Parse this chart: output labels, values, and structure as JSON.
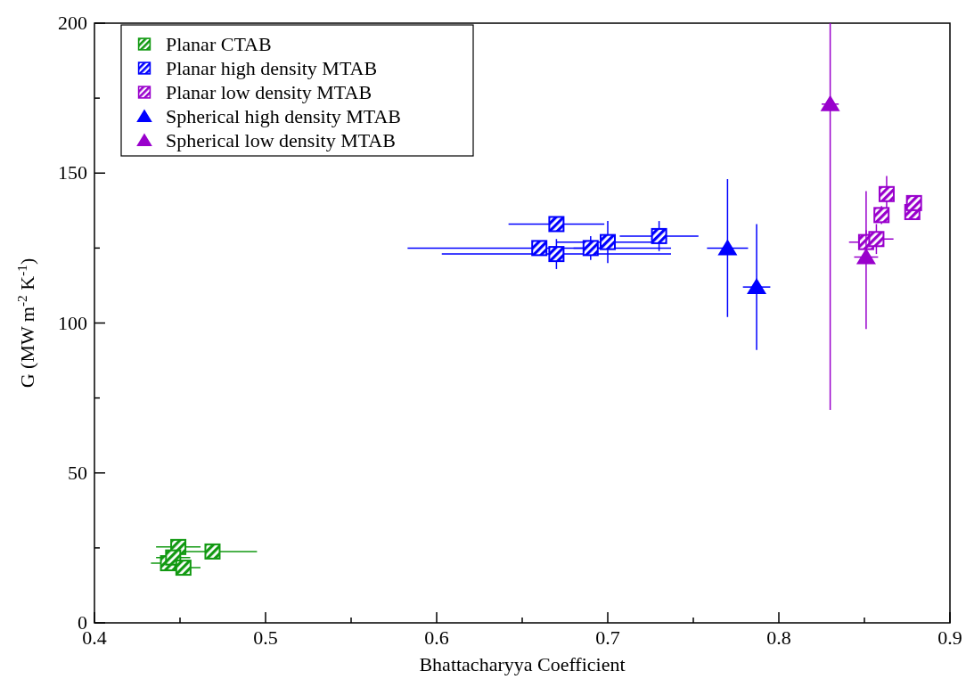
{
  "chart_data": {
    "type": "scatter",
    "xlabel": "Bhattacharyya Coefficient",
    "ylabel": "G (MW m$^{-2}$ K$^{-1}$)",
    "xlim": [
      0.4,
      0.9
    ],
    "ylim": [
      0,
      200
    ],
    "xticks": [
      0.4,
      {
        "value": 0.45,
        "label": null
      },
      0.5,
      {
        "value": 0.55,
        "label": null
      },
      0.6,
      {
        "value": 0.65,
        "label": null
      },
      0.7,
      {
        "value": 0.75,
        "label": null
      },
      0.8,
      {
        "value": 0.85,
        "label": null
      },
      0.9
    ],
    "yticks": [
      0,
      {
        "value": 25,
        "label": null
      },
      50,
      {
        "value": 75,
        "label": null
      },
      100,
      {
        "value": 125,
        "label": null
      },
      150,
      {
        "value": 175,
        "label": null
      },
      200
    ],
    "grid": false,
    "legend": "top left",
    "series": [
      {
        "name": "Planar CTAB",
        "color": "#119911",
        "marker": "square",
        "x": [
          0.449,
          0.469,
          0.443,
          0.446,
          0.452
        ],
        "values": [
          25.3,
          23.8,
          19.9,
          21.8,
          18.4
        ],
        "errors": [
          null,
          null,
          null,
          null,
          null
        ],
        "xerrors": [
          0.013,
          0.026,
          0.01,
          0.01,
          0.01
        ]
      },
      {
        "name": "Planar high density MTAB",
        "color": "#0000ff",
        "marker": "square",
        "x": [
          0.67,
          0.66,
          0.67,
          0.69,
          0.7,
          0.73
        ],
        "values": [
          133,
          125,
          123,
          125,
          127,
          129
        ],
        "errors": [
          2,
          null,
          5,
          4,
          7,
          5
        ],
        "xerrors": [
          0.028,
          0.077,
          0.067,
          0.01,
          0.03,
          0.023
        ]
      },
      {
        "name": "Planar low density MTAB",
        "color": "#9900cc",
        "marker": "square",
        "x": [
          0.851,
          0.857,
          0.86,
          0.863,
          0.878,
          0.879
        ],
        "values": [
          127,
          128,
          136,
          143,
          137,
          140
        ],
        "errors": [
          4,
          5,
          3,
          6,
          null,
          null
        ],
        "xerrors": [
          0.01,
          0.01,
          null,
          null,
          null,
          null
        ]
      },
      {
        "name": "Spherical high density MTAB",
        "color": "#0000ff",
        "marker": "triangle",
        "x": [
          0.77,
          0.787
        ],
        "values": [
          125,
          112
        ],
        "errors": [
          23,
          21
        ],
        "xerrors": [
          0.012,
          0.008
        ]
      },
      {
        "name": "Spherical low density MTAB",
        "color": "#9900cc",
        "marker": "triangle",
        "x": [
          0.83,
          0.851
        ],
        "values": [
          173,
          122
        ],
        "errors": [
          [
            71,
            200
          ],
          [
            98,
            144
          ]
        ],
        "xerrors": [
          0.005,
          0.007
        ]
      }
    ]
  }
}
